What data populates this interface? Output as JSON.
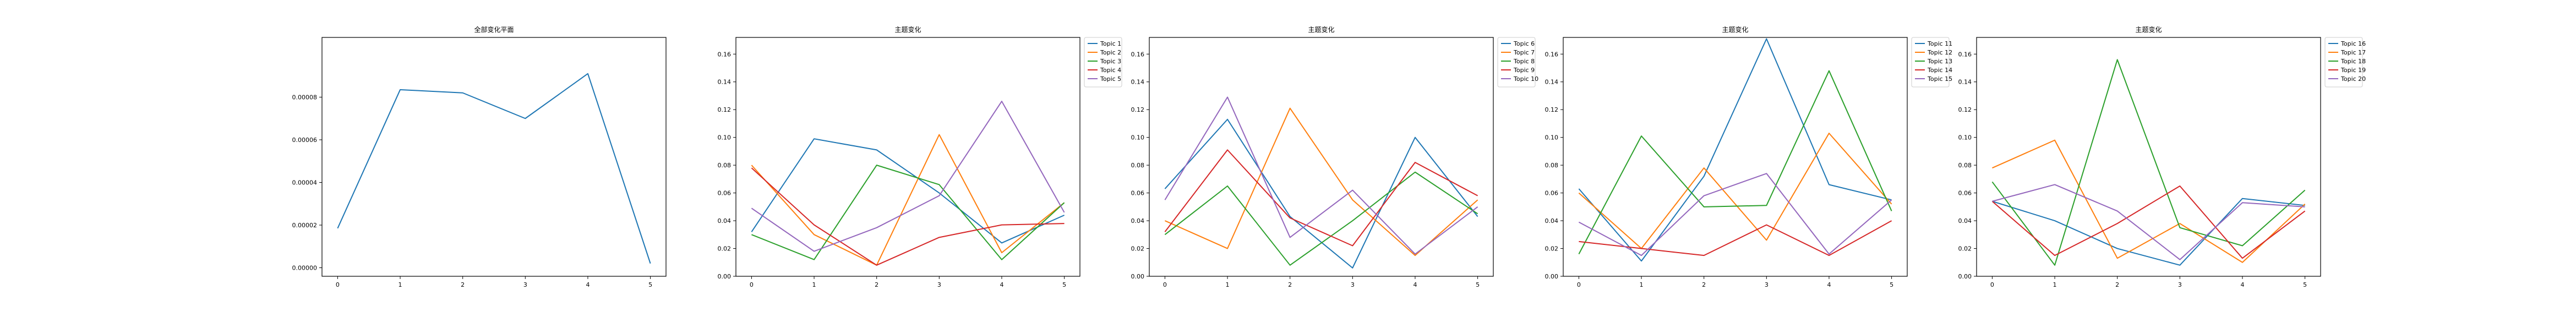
{
  "chart_data": [
    {
      "type": "line",
      "title": "全部变化平面",
      "x": [
        0,
        1,
        2,
        3,
        4,
        5
      ],
      "xticks": [
        "0",
        "1",
        "2",
        "3",
        "4",
        "5"
      ],
      "xlim": [
        -0.25,
        5.25
      ],
      "ylim": [
        -4e-06,
        0.000108
      ],
      "yticks": [
        "0.00000",
        "0.00002",
        "0.00004",
        "0.00006",
        "0.00008"
      ],
      "grid": false,
      "legend": null,
      "series": [
        {
          "values": [
            1.85e-05,
            8.35e-05,
            8.2e-05,
            7e-05,
            9.1e-05,
            2e-06
          ],
          "color": "#1f77b4"
        }
      ]
    },
    {
      "type": "line",
      "title": "主题变化",
      "x": [
        0,
        1,
        2,
        3,
        4,
        5
      ],
      "xticks": [
        "0",
        "1",
        "2",
        "3",
        "4",
        "5"
      ],
      "xlim": [
        -0.25,
        5.25
      ],
      "ylim": [
        0,
        0.172
      ],
      "yticks": [
        "0.00",
        "0.02",
        "0.04",
        "0.06",
        "0.08",
        "0.10",
        "0.12",
        "0.14",
        "0.16"
      ],
      "grid": false,
      "legend": "outside-top-right",
      "series": [
        {
          "name": "Topic 1",
          "values": [
            0.032,
            0.099,
            0.091,
            0.06,
            0.024,
            0.044
          ],
          "color": "#1f77b4"
        },
        {
          "name": "Topic 2",
          "values": [
            0.08,
            0.03,
            0.008,
            0.102,
            0.017,
            0.053
          ],
          "color": "#ff7f0e"
        },
        {
          "name": "Topic 3",
          "values": [
            0.03,
            0.012,
            0.08,
            0.066,
            0.012,
            0.053
          ],
          "color": "#2ca02c"
        },
        {
          "name": "Topic 4",
          "values": [
            0.078,
            0.037,
            0.008,
            0.028,
            0.037,
            0.038
          ],
          "color": "#d62728"
        },
        {
          "name": "Topic 5",
          "values": [
            0.049,
            0.018,
            0.035,
            0.058,
            0.126,
            0.046
          ],
          "color": "#9467bd"
        }
      ]
    },
    {
      "type": "line",
      "title": "主题变化",
      "x": [
        0,
        1,
        2,
        3,
        4,
        5
      ],
      "xticks": [
        "0",
        "1",
        "2",
        "3",
        "4",
        "5"
      ],
      "xlim": [
        -0.25,
        5.25
      ],
      "ylim": [
        0,
        0.172
      ],
      "yticks": [
        "0.00",
        "0.02",
        "0.04",
        "0.06",
        "0.08",
        "0.10",
        "0.12",
        "0.14",
        "0.16"
      ],
      "grid": false,
      "legend": "outside-top-right",
      "series": [
        {
          "name": "Topic 6",
          "values": [
            0.063,
            0.113,
            0.043,
            0.006,
            0.1,
            0.043
          ],
          "color": "#1f77b4"
        },
        {
          "name": "Topic 7",
          "values": [
            0.04,
            0.02,
            0.121,
            0.055,
            0.015,
            0.055
          ],
          "color": "#ff7f0e"
        },
        {
          "name": "Topic 8",
          "values": [
            0.03,
            0.065,
            0.008,
            0.04,
            0.075,
            0.045
          ],
          "color": "#2ca02c"
        },
        {
          "name": "Topic 9",
          "values": [
            0.032,
            0.091,
            0.042,
            0.022,
            0.082,
            0.058
          ],
          "color": "#d62728"
        },
        {
          "name": "Topic 10",
          "values": [
            0.055,
            0.129,
            0.028,
            0.062,
            0.016,
            0.05
          ],
          "color": "#9467bd"
        }
      ]
    },
    {
      "type": "line",
      "title": "主题变化",
      "x": [
        0,
        1,
        2,
        3,
        4,
        5
      ],
      "xticks": [
        "0",
        "1",
        "2",
        "3",
        "4",
        "5"
      ],
      "xlim": [
        -0.25,
        5.25
      ],
      "ylim": [
        0,
        0.172
      ],
      "yticks": [
        "0.00",
        "0.02",
        "0.04",
        "0.06",
        "0.08",
        "0.10",
        "0.12",
        "0.14",
        "0.16"
      ],
      "grid": false,
      "legend": "outside-top-right",
      "series": [
        {
          "name": "Topic 11",
          "values": [
            0.063,
            0.011,
            0.072,
            0.171,
            0.066,
            0.055
          ],
          "color": "#1f77b4"
        },
        {
          "name": "Topic 12",
          "values": [
            0.06,
            0.02,
            0.078,
            0.026,
            0.103,
            0.052
          ],
          "color": "#ff7f0e"
        },
        {
          "name": "Topic 13",
          "values": [
            0.016,
            0.101,
            0.05,
            0.051,
            0.148,
            0.047
          ],
          "color": "#2ca02c"
        },
        {
          "name": "Topic 14",
          "values": [
            0.025,
            0.02,
            0.015,
            0.037,
            0.015,
            0.04
          ],
          "color": "#d62728"
        },
        {
          "name": "Topic 15",
          "values": [
            0.039,
            0.015,
            0.058,
            0.074,
            0.016,
            0.055
          ],
          "color": "#9467bd"
        }
      ]
    },
    {
      "type": "line",
      "title": "主题变化",
      "x": [
        0,
        1,
        2,
        3,
        4,
        5
      ],
      "xticks": [
        "0",
        "1",
        "2",
        "3",
        "4",
        "5"
      ],
      "xlim": [
        -0.25,
        5.25
      ],
      "ylim": [
        0,
        0.172
      ],
      "yticks": [
        "0.00",
        "0.02",
        "0.04",
        "0.06",
        "0.08",
        "0.10",
        "0.12",
        "0.14",
        "0.16"
      ],
      "grid": false,
      "legend": "outside-top-right",
      "series": [
        {
          "name": "Topic 16",
          "values": [
            0.054,
            0.04,
            0.02,
            0.008,
            0.056,
            0.051
          ],
          "color": "#1f77b4"
        },
        {
          "name": "Topic 17",
          "values": [
            0.078,
            0.098,
            0.013,
            0.038,
            0.01,
            0.052
          ],
          "color": "#ff7f0e"
        },
        {
          "name": "Topic 18",
          "values": [
            0.068,
            0.008,
            0.156,
            0.035,
            0.022,
            0.062
          ],
          "color": "#2ca02c"
        },
        {
          "name": "Topic 19",
          "values": [
            0.054,
            0.015,
            0.038,
            0.065,
            0.013,
            0.047
          ],
          "color": "#d62728"
        },
        {
          "name": "Topic 20",
          "values": [
            0.054,
            0.066,
            0.047,
            0.012,
            0.053,
            0.05
          ],
          "color": "#9467bd"
        }
      ]
    }
  ]
}
